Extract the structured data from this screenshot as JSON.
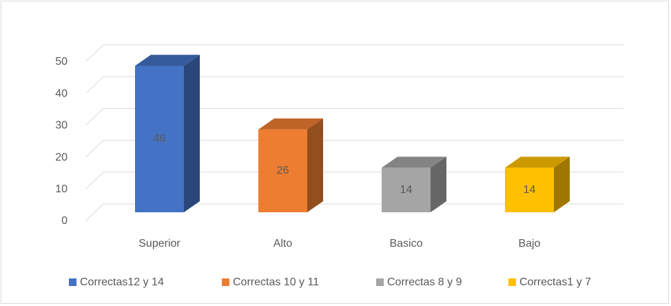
{
  "chart_data": {
    "type": "bar3d",
    "categories": [
      "Superior",
      "Alto",
      "Basico",
      "Bajo"
    ],
    "series": [
      {
        "name": "Correctas12 y 14",
        "color": "#4472c4",
        "values": [
          46,
          null,
          null,
          null
        ]
      },
      {
        "name": "Correctas 10 y 11",
        "color": "#ed7d31",
        "values": [
          null,
          26,
          null,
          null
        ]
      },
      {
        "name": "Correctas 8 y 9",
        "color": "#a5a5a5",
        "values": [
          null,
          null,
          14,
          null
        ]
      },
      {
        "name": "Correctas1 y 7",
        "color": "#ffc000",
        "values": [
          null,
          null,
          null,
          14
        ]
      }
    ],
    "ylim": [
      0,
      50
    ],
    "yticks": [
      0,
      10,
      20,
      30,
      40,
      50
    ],
    "grid": true,
    "legend": "bottom"
  }
}
